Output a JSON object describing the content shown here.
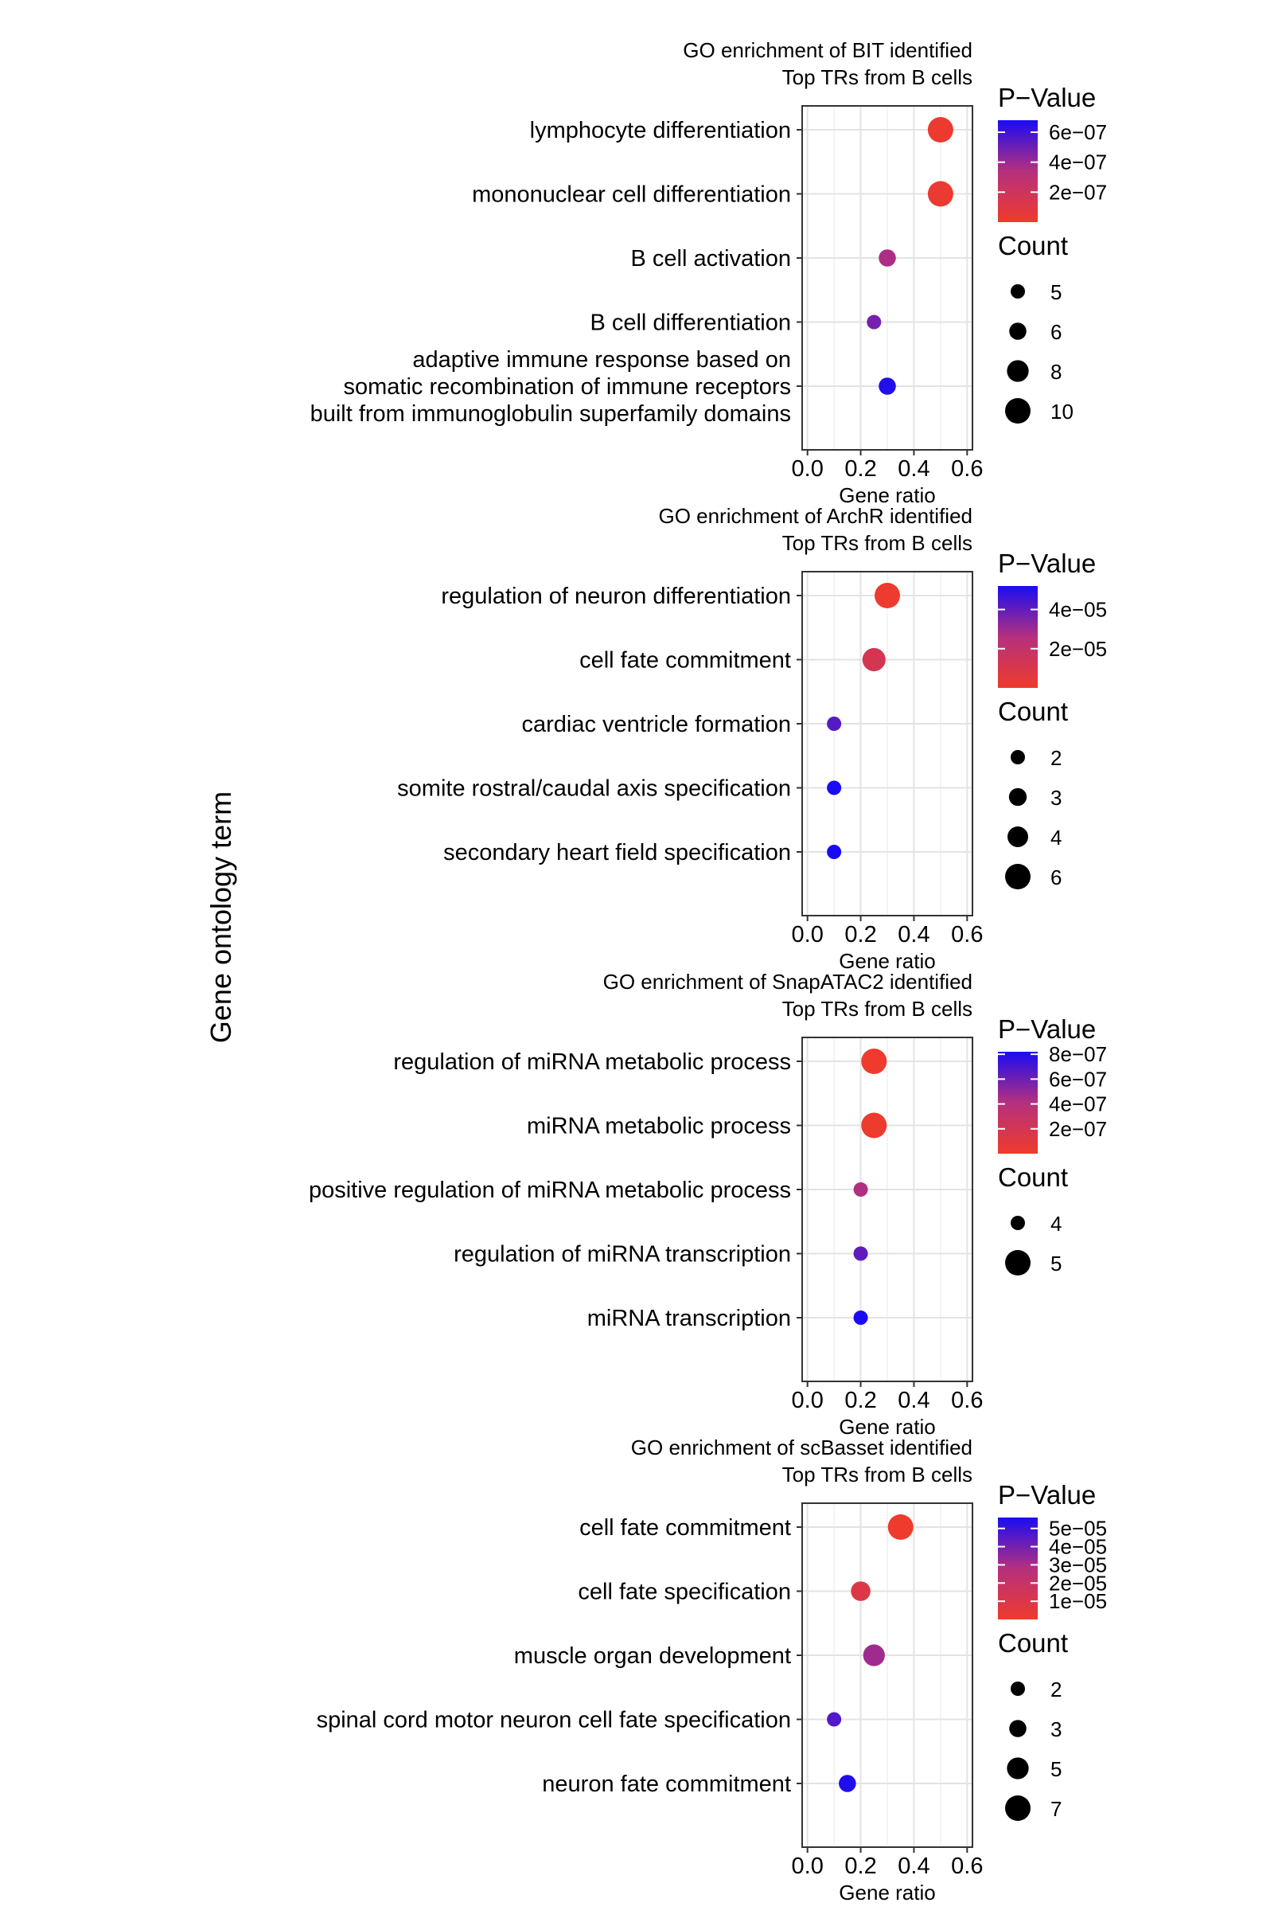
{
  "figure": {
    "shared_ylabel": "Gene ontology term"
  },
  "chart_data": [
    {
      "type": "scatter",
      "title": "GO enrichment of BIT identified\nTop TRs from B cells",
      "xlabel": "Gene ratio",
      "ylabel": "Gene ontology term",
      "xlim": [
        -0.02,
        0.62
      ],
      "xticks": [
        "0.0",
        "0.2",
        "0.4",
        "0.6"
      ],
      "categories": [
        "lymphocyte differentiation",
        "mononuclear cell differentiation",
        "B cell activation",
        "B cell differentiation",
        "adaptive immune response based on\nsomatic recombination of immune receptors\nbuilt from immunoglobulin superfamily domains"
      ],
      "points": [
        {
          "term": "lymphocyte differentiation",
          "x": 0.5,
          "pvalue": 2e-08,
          "count": 10
        },
        {
          "term": "mononuclear cell differentiation",
          "x": 0.5,
          "pvalue": 2.2e-08,
          "count": 10
        },
        {
          "term": "B cell activation",
          "x": 0.3,
          "pvalue": 3.6e-07,
          "count": 6
        },
        {
          "term": "B cell differentiation",
          "x": 0.25,
          "pvalue": 4.8e-07,
          "count": 5
        },
        {
          "term": "adaptive immune response based on somatic recombination of immune receptors built from immunoglobulin superfamily domains",
          "x": 0.3,
          "pvalue": 6.6e-07,
          "count": 6
        }
      ],
      "color_legend": {
        "title": "P−Value",
        "min": 0,
        "max": 6.8e-07,
        "ticks": [
          {
            "value": 6e-07,
            "label": "6e−07"
          },
          {
            "value": 4e-07,
            "label": "4e−07"
          },
          {
            "value": 2e-07,
            "label": "2e−07"
          }
        ],
        "low_color": "#ef3b2c",
        "mid_color": "#b5307e",
        "high_color": "#1a0cf2"
      },
      "size_legend": {
        "title": "Count",
        "min": 5,
        "max": 10,
        "entries": [
          {
            "value": 5,
            "label": "5"
          },
          {
            "value": 6,
            "label": "6"
          },
          {
            "value": 8,
            "label": "8"
          },
          {
            "value": 10,
            "label": "10"
          }
        ]
      }
    },
    {
      "type": "scatter",
      "title": "GO enrichment of ArchR identified\nTop TRs from B cells",
      "xlabel": "Gene ratio",
      "ylabel": "Gene ontology term",
      "xlim": [
        -0.02,
        0.62
      ],
      "xticks": [
        "0.0",
        "0.2",
        "0.4",
        "0.6"
      ],
      "categories": [
        "regulation of neuron differentiation",
        "cell fate commitment",
        "cardiac ventricle formation",
        "somite rostral/caudal axis specification",
        "secondary heart field specification"
      ],
      "points": [
        {
          "term": "regulation of neuron differentiation",
          "x": 0.3,
          "pvalue": 1e-06,
          "count": 6
        },
        {
          "term": "cell fate commitment",
          "x": 0.25,
          "pvalue": 1.2e-05,
          "count": 5
        },
        {
          "term": "cardiac ventricle formation",
          "x": 0.1,
          "pvalue": 4.2e-05,
          "count": 2
        },
        {
          "term": "somite rostral/caudal axis specification",
          "x": 0.1,
          "pvalue": 5.2e-05,
          "count": 2
        },
        {
          "term": "secondary heart field specification",
          "x": 0.1,
          "pvalue": 5.2e-05,
          "count": 2
        }
      ],
      "color_legend": {
        "title": "P−Value",
        "min": 0,
        "max": 5.2e-05,
        "ticks": [
          {
            "value": 4e-05,
            "label": "4e−05"
          },
          {
            "value": 2e-05,
            "label": "2e−05"
          }
        ],
        "low_color": "#ef3b2c",
        "mid_color": "#b5307e",
        "high_color": "#1a0cf2"
      },
      "size_legend": {
        "title": "Count",
        "min": 2,
        "max": 6,
        "entries": [
          {
            "value": 2,
            "label": "2"
          },
          {
            "value": 3,
            "label": "3"
          },
          {
            "value": 4,
            "label": "4"
          },
          {
            "value": 6,
            "label": "6"
          }
        ]
      }
    },
    {
      "type": "scatter",
      "title": "GO enrichment of SnapATAC2 identified\nTop TRs from B cells",
      "xlabel": "Gene ratio",
      "ylabel": "Gene ontology term",
      "xlim": [
        -0.02,
        0.62
      ],
      "xticks": [
        "0.0",
        "0.2",
        "0.4",
        "0.6"
      ],
      "categories": [
        "regulation of miRNA metabolic process",
        "miRNA metabolic process",
        "positive regulation of miRNA metabolic process",
        "regulation of miRNA transcription",
        "miRNA transcription"
      ],
      "points": [
        {
          "term": "regulation of miRNA metabolic process",
          "x": 0.25,
          "pvalue": 1e-08,
          "count": 5
        },
        {
          "term": "miRNA metabolic process",
          "x": 0.25,
          "pvalue": 1.2e-08,
          "count": 5
        },
        {
          "term": "positive regulation of miRNA metabolic process",
          "x": 0.2,
          "pvalue": 4.2e-07,
          "count": 4
        },
        {
          "term": "regulation of miRNA transcription",
          "x": 0.2,
          "pvalue": 6.4e-07,
          "count": 4
        },
        {
          "term": "miRNA transcription",
          "x": 0.2,
          "pvalue": 8.2e-07,
          "count": 4
        }
      ],
      "color_legend": {
        "title": "P−Value",
        "min": 0,
        "max": 8.2e-07,
        "ticks": [
          {
            "value": 8e-07,
            "label": "8e−07"
          },
          {
            "value": 6e-07,
            "label": "6e−07"
          },
          {
            "value": 4e-07,
            "label": "4e−07"
          },
          {
            "value": 2e-07,
            "label": "2e−07"
          }
        ],
        "low_color": "#ef3b2c",
        "mid_color": "#b5307e",
        "high_color": "#1a0cf2"
      },
      "size_legend": {
        "title": "Count",
        "min": 4,
        "max": 5,
        "entries": [
          {
            "value": 4,
            "label": "4"
          },
          {
            "value": 5,
            "label": "5"
          }
        ]
      }
    },
    {
      "type": "scatter",
      "title": "GO enrichment of scBasset identified\nTop TRs from B cells",
      "xlabel": "Gene ratio",
      "ylabel": "Gene ontology term",
      "xlim": [
        -0.02,
        0.62
      ],
      "xticks": [
        "0.0",
        "0.2",
        "0.4",
        "0.6"
      ],
      "categories": [
        "cell fate commitment",
        "cell fate specification",
        "muscle organ development",
        "spinal cord motor neuron cell fate specification",
        "neuron fate commitment"
      ],
      "points": [
        {
          "term": "cell fate commitment",
          "x": 0.35,
          "pvalue": 2e-07,
          "count": 7
        },
        {
          "term": "cell fate specification",
          "x": 0.2,
          "pvalue": 9e-06,
          "count": 4
        },
        {
          "term": "muscle organ development",
          "x": 0.25,
          "pvalue": 3.2e-05,
          "count": 5
        },
        {
          "term": "spinal cord motor neuron cell fate specification",
          "x": 0.1,
          "pvalue": 4.6e-05,
          "count": 2
        },
        {
          "term": "neuron fate commitment",
          "x": 0.15,
          "pvalue": 5.5e-05,
          "count": 3
        }
      ],
      "color_legend": {
        "title": "P−Value",
        "min": 0,
        "max": 5.6e-05,
        "ticks": [
          {
            "value": 5e-05,
            "label": "5e−05"
          },
          {
            "value": 4e-05,
            "label": "4e−05"
          },
          {
            "value": 3e-05,
            "label": "3e−05"
          },
          {
            "value": 2e-05,
            "label": "2e−05"
          },
          {
            "value": 1e-05,
            "label": "1e−05"
          }
        ],
        "low_color": "#ef3b2c",
        "mid_color": "#b5307e",
        "high_color": "#1a0cf2"
      },
      "size_legend": {
        "title": "Count",
        "min": 2,
        "max": 7,
        "entries": [
          {
            "value": 2,
            "label": "2"
          },
          {
            "value": 3,
            "label": "3"
          },
          {
            "value": 5,
            "label": "5"
          },
          {
            "value": 7,
            "label": "7"
          }
        ]
      }
    }
  ]
}
